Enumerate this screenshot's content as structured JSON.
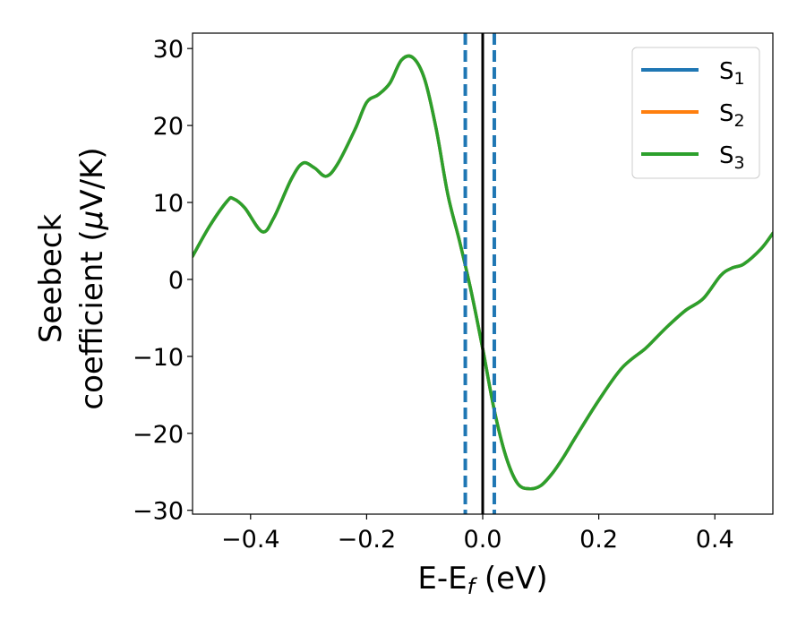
{
  "chart_data": {
    "type": "line",
    "xlabel": "E-E",
    "xlabel_sub": "f",
    "xlabel_unit": " (eV)",
    "ylabel_line1": "Seebeck",
    "ylabel_line2": "coefficient  (",
    "ylabel_mu": "μ",
    "ylabel_unit": "V/K)",
    "xlim": [
      -0.5,
      0.5
    ],
    "ylim": [
      -30.5,
      32
    ],
    "xticks": [
      -0.4,
      -0.2,
      0.0,
      0.2,
      0.4
    ],
    "xtick_labels": [
      "−0.4",
      "−0.2",
      "0.0",
      "0.2",
      "0.4"
    ],
    "yticks": [
      -30,
      -20,
      -10,
      0,
      10,
      20,
      30
    ],
    "ytick_labels": [
      "−30",
      "−20",
      "−10",
      "0",
      "10",
      "20",
      "30"
    ],
    "grid": false,
    "legend_position": "top-right",
    "legend": [
      {
        "base": "S",
        "sub": "1",
        "color": "#1f77b4"
      },
      {
        "base": "S",
        "sub": "2",
        "color": "#ff7f0e"
      },
      {
        "base": "S",
        "sub": "3",
        "color": "#2ca02c"
      }
    ],
    "vertical_lines": [
      {
        "x": -0.03,
        "style": "dashed",
        "color": "#1f77b4"
      },
      {
        "x": 0.0,
        "style": "solid",
        "color": "#000000"
      },
      {
        "x": 0.02,
        "style": "dashed",
        "color": "#1f77b4"
      }
    ],
    "series": [
      {
        "name": "S1",
        "color": "#1f77b4",
        "x": [
          -0.5,
          -0.47,
          -0.44,
          -0.43,
          -0.41,
          -0.38,
          -0.36,
          -0.33,
          -0.31,
          -0.29,
          -0.27,
          -0.25,
          -0.22,
          -0.2,
          -0.18,
          -0.16,
          -0.14,
          -0.12,
          -0.1,
          -0.08,
          -0.06,
          -0.04,
          -0.02,
          0.0,
          0.02,
          0.04,
          0.06,
          0.08,
          0.1,
          0.12,
          0.14,
          0.16,
          0.2,
          0.24,
          0.28,
          0.3,
          0.32,
          0.35,
          0.38,
          0.41,
          0.43,
          0.45,
          0.48,
          0.5
        ],
        "y": [
          3,
          7,
          10.2,
          10.5,
          9.3,
          6.2,
          8,
          13,
          15.1,
          14.5,
          13.4,
          15,
          19.5,
          23,
          24,
          25.5,
          28.5,
          28.8,
          26,
          19.5,
          11,
          5,
          -1.5,
          -9,
          -17,
          -23,
          -26.5,
          -27.2,
          -26.8,
          -25.2,
          -23,
          -20.5,
          -15.7,
          -11.5,
          -9,
          -7.5,
          -6,
          -4,
          -2.5,
          0.5,
          1.5,
          2,
          4,
          6
        ]
      },
      {
        "name": "S2",
        "color": "#ff7f0e",
        "x": [
          -0.5,
          -0.47,
          -0.44,
          -0.43,
          -0.41,
          -0.38,
          -0.36,
          -0.33,
          -0.31,
          -0.29,
          -0.27,
          -0.25,
          -0.22,
          -0.2,
          -0.18,
          -0.16,
          -0.14,
          -0.12,
          -0.1,
          -0.08,
          -0.06,
          -0.04,
          -0.02,
          0.0,
          0.02,
          0.04,
          0.06,
          0.08,
          0.1,
          0.12,
          0.14,
          0.16,
          0.2,
          0.24,
          0.28,
          0.3,
          0.32,
          0.35,
          0.38,
          0.41,
          0.43,
          0.45,
          0.48,
          0.5
        ],
        "y": [
          3,
          7,
          10.2,
          10.5,
          9.3,
          6.2,
          8,
          13,
          15.1,
          14.5,
          13.4,
          15,
          19.5,
          23,
          24,
          25.5,
          28.5,
          28.8,
          26,
          19.5,
          11,
          5,
          -1.5,
          -9,
          -17,
          -23,
          -26.5,
          -27.2,
          -26.8,
          -25.2,
          -23,
          -20.5,
          -15.7,
          -11.5,
          -9,
          -7.5,
          -6,
          -4,
          -2.5,
          0.5,
          1.5,
          2,
          4,
          6
        ]
      },
      {
        "name": "S3",
        "color": "#2ca02c",
        "x": [
          -0.5,
          -0.47,
          -0.44,
          -0.43,
          -0.41,
          -0.38,
          -0.36,
          -0.33,
          -0.31,
          -0.29,
          -0.27,
          -0.25,
          -0.22,
          -0.2,
          -0.18,
          -0.16,
          -0.14,
          -0.12,
          -0.1,
          -0.08,
          -0.06,
          -0.04,
          -0.02,
          0.0,
          0.02,
          0.04,
          0.06,
          0.08,
          0.1,
          0.12,
          0.14,
          0.16,
          0.2,
          0.24,
          0.28,
          0.3,
          0.32,
          0.35,
          0.38,
          0.41,
          0.43,
          0.45,
          0.48,
          0.5
        ],
        "y": [
          3,
          7,
          10.2,
          10.5,
          9.3,
          6.2,
          8,
          13,
          15.1,
          14.5,
          13.4,
          15,
          19.5,
          23,
          24,
          25.5,
          28.5,
          28.8,
          26,
          19.5,
          11,
          5,
          -1.5,
          -9,
          -17,
          -23,
          -26.5,
          -27.2,
          -26.8,
          -25.2,
          -23,
          -20.5,
          -15.7,
          -11.5,
          -9,
          -7.5,
          -6,
          -4,
          -2.5,
          0.5,
          1.5,
          2,
          4,
          6
        ]
      }
    ]
  }
}
